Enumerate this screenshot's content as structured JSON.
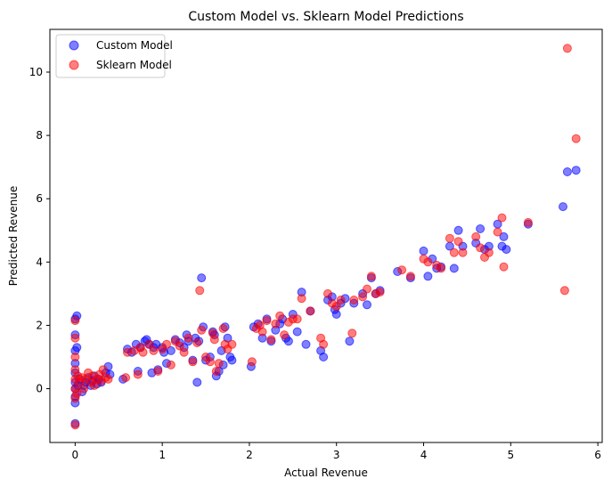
{
  "chart_data": {
    "type": "scatter",
    "title": "Custom Model vs. Sklearn Model Predictions",
    "xlabel": "Actual Revenue",
    "ylabel": "Predicted Revenue",
    "xlim": [
      -0.29,
      6.05
    ],
    "ylim": [
      -1.7,
      11.35
    ],
    "xticks": [
      0,
      1,
      2,
      3,
      4,
      5,
      6
    ],
    "yticks": [
      0,
      2,
      4,
      6,
      8,
      10
    ],
    "grid": false,
    "legend": "top-left",
    "series": [
      {
        "name": "Custom Model",
        "color": "#0000ff",
        "points": [
          [
            0.0,
            -1.1
          ],
          [
            0.0,
            -0.45
          ],
          [
            0.0,
            -0.25
          ],
          [
            0.0,
            0.0
          ],
          [
            0.0,
            0.2
          ],
          [
            0.0,
            0.5
          ],
          [
            0.0,
            0.8
          ],
          [
            0.0,
            1.2
          ],
          [
            0.0,
            1.7
          ],
          [
            0.0,
            2.2
          ],
          [
            0.02,
            2.3
          ],
          [
            0.02,
            1.3
          ],
          [
            0.03,
            0.1
          ],
          [
            0.05,
            0.3
          ],
          [
            0.08,
            -0.1
          ],
          [
            0.1,
            0.1
          ],
          [
            0.12,
            0.2
          ],
          [
            0.15,
            0.35
          ],
          [
            0.18,
            0.1
          ],
          [
            0.2,
            0.25
          ],
          [
            0.22,
            0.4
          ],
          [
            0.25,
            0.15
          ],
          [
            0.27,
            0.3
          ],
          [
            0.3,
            0.2
          ],
          [
            0.35,
            0.5
          ],
          [
            0.38,
            0.7
          ],
          [
            0.4,
            0.45
          ],
          [
            0.55,
            0.3
          ],
          [
            0.6,
            1.25
          ],
          [
            0.65,
            1.15
          ],
          [
            0.7,
            1.4
          ],
          [
            0.72,
            0.55
          ],
          [
            0.75,
            1.3
          ],
          [
            0.8,
            1.5
          ],
          [
            0.82,
            1.55
          ],
          [
            0.85,
            1.4
          ],
          [
            0.88,
            0.5
          ],
          [
            0.9,
            1.3
          ],
          [
            0.93,
            1.4
          ],
          [
            0.95,
            0.6
          ],
          [
            1.0,
            1.3
          ],
          [
            1.02,
            1.15
          ],
          [
            1.05,
            0.8
          ],
          [
            1.1,
            1.2
          ],
          [
            1.15,
            1.55
          ],
          [
            1.2,
            1.45
          ],
          [
            1.25,
            1.3
          ],
          [
            1.28,
            1.7
          ],
          [
            1.3,
            1.5
          ],
          [
            1.35,
            0.9
          ],
          [
            1.38,
            1.6
          ],
          [
            1.4,
            0.2
          ],
          [
            1.42,
            1.5
          ],
          [
            1.45,
            3.5
          ],
          [
            1.47,
            1.95
          ],
          [
            1.5,
            0.9
          ],
          [
            1.55,
            1.0
          ],
          [
            1.58,
            1.8
          ],
          [
            1.6,
            1.7
          ],
          [
            1.62,
            0.4
          ],
          [
            1.65,
            0.55
          ],
          [
            1.68,
            1.2
          ],
          [
            1.7,
            0.75
          ],
          [
            1.72,
            1.95
          ],
          [
            1.75,
            1.6
          ],
          [
            1.78,
            1.0
          ],
          [
            1.8,
            0.9
          ],
          [
            2.02,
            0.7
          ],
          [
            2.05,
            1.95
          ],
          [
            2.1,
            2.05
          ],
          [
            2.15,
            1.6
          ],
          [
            2.2,
            2.2
          ],
          [
            2.25,
            1.5
          ],
          [
            2.3,
            1.85
          ],
          [
            2.35,
            2.05
          ],
          [
            2.38,
            2.2
          ],
          [
            2.42,
            1.6
          ],
          [
            2.45,
            1.5
          ],
          [
            2.5,
            2.35
          ],
          [
            2.55,
            1.8
          ],
          [
            2.6,
            3.05
          ],
          [
            2.65,
            1.4
          ],
          [
            2.7,
            2.45
          ],
          [
            2.82,
            1.2
          ],
          [
            2.85,
            1.0
          ],
          [
            2.9,
            2.8
          ],
          [
            2.95,
            2.9
          ],
          [
            2.98,
            2.5
          ],
          [
            3.0,
            2.35
          ],
          [
            3.05,
            2.7
          ],
          [
            3.1,
            2.85
          ],
          [
            3.15,
            1.5
          ],
          [
            3.2,
            2.7
          ],
          [
            3.3,
            3.0
          ],
          [
            3.35,
            2.65
          ],
          [
            3.4,
            3.5
          ],
          [
            3.45,
            3.0
          ],
          [
            3.5,
            3.1
          ],
          [
            3.7,
            3.7
          ],
          [
            3.85,
            3.5
          ],
          [
            4.0,
            4.35
          ],
          [
            4.05,
            3.55
          ],
          [
            4.1,
            4.1
          ],
          [
            4.15,
            3.8
          ],
          [
            4.2,
            3.85
          ],
          [
            4.3,
            4.5
          ],
          [
            4.35,
            3.8
          ],
          [
            4.4,
            5.0
          ],
          [
            4.45,
            4.5
          ],
          [
            4.6,
            4.6
          ],
          [
            4.65,
            5.05
          ],
          [
            4.7,
            4.4
          ],
          [
            4.75,
            4.5
          ],
          [
            4.85,
            5.2
          ],
          [
            4.9,
            4.5
          ],
          [
            4.92,
            4.8
          ],
          [
            4.95,
            4.4
          ],
          [
            5.2,
            5.2
          ],
          [
            5.6,
            5.75
          ],
          [
            5.65,
            6.85
          ],
          [
            5.75,
            6.9
          ]
        ]
      },
      {
        "name": "Sklearn Model",
        "color": "#ff0000",
        "points": [
          [
            0.0,
            -1.15
          ],
          [
            0.0,
            -0.3
          ],
          [
            0.0,
            0.0
          ],
          [
            0.0,
            0.3
          ],
          [
            0.0,
            0.6
          ],
          [
            0.0,
            1.0
          ],
          [
            0.0,
            1.6
          ],
          [
            0.0,
            2.15
          ],
          [
            0.02,
            -0.15
          ],
          [
            0.03,
            0.4
          ],
          [
            0.05,
            0.2
          ],
          [
            0.08,
            0.35
          ],
          [
            0.1,
            0.0
          ],
          [
            0.12,
            0.3
          ],
          [
            0.15,
            0.5
          ],
          [
            0.18,
            0.2
          ],
          [
            0.2,
            0.4
          ],
          [
            0.22,
            0.1
          ],
          [
            0.25,
            0.3
          ],
          [
            0.28,
            0.45
          ],
          [
            0.3,
            0.25
          ],
          [
            0.32,
            0.6
          ],
          [
            0.35,
            0.35
          ],
          [
            0.38,
            0.3
          ],
          [
            0.58,
            0.35
          ],
          [
            0.6,
            1.15
          ],
          [
            0.68,
            1.2
          ],
          [
            0.72,
            0.45
          ],
          [
            0.75,
            1.3
          ],
          [
            0.78,
            1.15
          ],
          [
            0.85,
            1.4
          ],
          [
            0.9,
            1.2
          ],
          [
            0.95,
            0.55
          ],
          [
            1.0,
            1.25
          ],
          [
            1.05,
            1.4
          ],
          [
            1.1,
            0.75
          ],
          [
            1.15,
            1.5
          ],
          [
            1.2,
            1.35
          ],
          [
            1.25,
            1.15
          ],
          [
            1.3,
            1.6
          ],
          [
            1.35,
            0.85
          ],
          [
            1.4,
            1.45
          ],
          [
            1.43,
            3.1
          ],
          [
            1.45,
            1.85
          ],
          [
            1.5,
            1.0
          ],
          [
            1.55,
            0.85
          ],
          [
            1.58,
            1.75
          ],
          [
            1.6,
            1.55
          ],
          [
            1.62,
            0.55
          ],
          [
            1.65,
            0.8
          ],
          [
            1.7,
            1.9
          ],
          [
            1.72,
            1.4
          ],
          [
            1.75,
            1.25
          ],
          [
            1.8,
            1.4
          ],
          [
            2.03,
            0.85
          ],
          [
            2.08,
            1.9
          ],
          [
            2.12,
            2.0
          ],
          [
            2.15,
            1.8
          ],
          [
            2.2,
            2.15
          ],
          [
            2.25,
            1.55
          ],
          [
            2.3,
            2.05
          ],
          [
            2.35,
            2.3
          ],
          [
            2.4,
            1.7
          ],
          [
            2.45,
            2.1
          ],
          [
            2.5,
            2.2
          ],
          [
            2.55,
            2.2
          ],
          [
            2.6,
            2.85
          ],
          [
            2.7,
            2.45
          ],
          [
            2.82,
            1.6
          ],
          [
            2.85,
            1.4
          ],
          [
            2.9,
            3.0
          ],
          [
            2.95,
            2.7
          ],
          [
            3.0,
            2.6
          ],
          [
            3.05,
            2.8
          ],
          [
            3.18,
            1.75
          ],
          [
            3.2,
            2.8
          ],
          [
            3.3,
            2.9
          ],
          [
            3.35,
            3.15
          ],
          [
            3.4,
            3.55
          ],
          [
            3.45,
            3.0
          ],
          [
            3.5,
            3.05
          ],
          [
            3.75,
            3.75
          ],
          [
            3.85,
            3.55
          ],
          [
            4.0,
            4.1
          ],
          [
            4.05,
            4.0
          ],
          [
            4.15,
            3.9
          ],
          [
            4.2,
            3.8
          ],
          [
            4.3,
            4.75
          ],
          [
            4.35,
            4.3
          ],
          [
            4.4,
            4.65
          ],
          [
            4.45,
            4.3
          ],
          [
            4.6,
            4.8
          ],
          [
            4.65,
            4.45
          ],
          [
            4.7,
            4.15
          ],
          [
            4.75,
            4.3
          ],
          [
            4.85,
            4.95
          ],
          [
            4.9,
            5.4
          ],
          [
            4.92,
            3.85
          ],
          [
            5.2,
            5.25
          ],
          [
            5.62,
            3.1
          ],
          [
            5.65,
            10.75
          ],
          [
            5.75,
            7.9
          ]
        ]
      }
    ]
  }
}
